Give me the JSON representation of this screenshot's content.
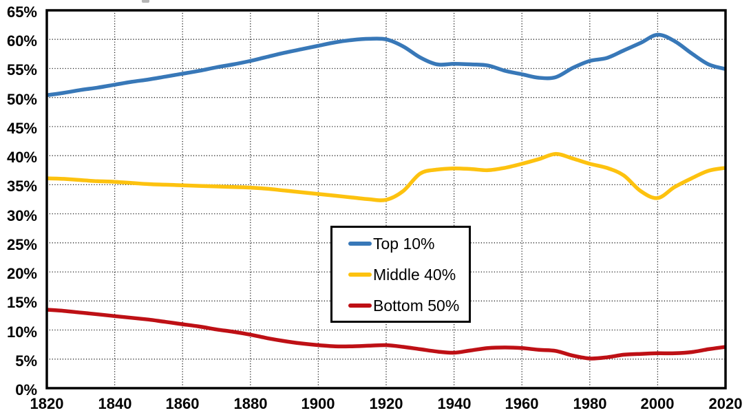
{
  "chart_data": {
    "type": "line",
    "title": "",
    "xlabel": "",
    "ylabel": "",
    "xlim": [
      1820,
      2020
    ],
    "ylim": [
      0,
      65
    ],
    "x_tick_step": 20,
    "y_tick_step": 5,
    "grid": "dotted",
    "legend_position": "center",
    "x_tick_labels": [
      "1820",
      "1840",
      "1860",
      "1880",
      "1900",
      "1920",
      "1940",
      "1960",
      "1980",
      "2000",
      "2020"
    ],
    "y_tick_labels": [
      "0%",
      "5%",
      "10%",
      "15%",
      "20%",
      "25%",
      "30%",
      "35%",
      "40%",
      "45%",
      "50%",
      "55%",
      "60%",
      "65%"
    ],
    "x": [
      1820,
      1825,
      1830,
      1835,
      1840,
      1845,
      1850,
      1855,
      1860,
      1865,
      1870,
      1875,
      1880,
      1885,
      1890,
      1895,
      1900,
      1905,
      1910,
      1915,
      1920,
      1925,
      1930,
      1935,
      1940,
      1945,
      1950,
      1955,
      1960,
      1965,
      1970,
      1975,
      1980,
      1985,
      1990,
      1995,
      2000,
      2005,
      2010,
      2015,
      2020
    ],
    "series": [
      {
        "name": "Top 10%",
        "color": "#3878B8",
        "values": [
          50.4,
          50.8,
          51.3,
          51.7,
          52.2,
          52.7,
          53.1,
          53.6,
          54.1,
          54.6,
          55.2,
          55.7,
          56.3,
          57.0,
          57.7,
          58.3,
          58.9,
          59.5,
          59.9,
          60.1,
          60.0,
          58.8,
          56.9,
          55.7,
          55.8,
          55.7,
          55.5,
          54.6,
          54.0,
          53.4,
          53.5,
          55.1,
          56.3,
          56.8,
          58.1,
          59.4,
          60.8,
          59.7,
          57.6,
          55.7,
          54.9
        ]
      },
      {
        "name": "Middle 40%",
        "color": "#FDC20F",
        "values": [
          36.1,
          36.0,
          35.8,
          35.6,
          35.5,
          35.3,
          35.1,
          35.0,
          34.9,
          34.8,
          34.7,
          34.6,
          34.5,
          34.3,
          34.0,
          33.7,
          33.4,
          33.1,
          32.8,
          32.5,
          32.4,
          33.9,
          36.9,
          37.6,
          37.8,
          37.7,
          37.5,
          37.9,
          38.6,
          39.4,
          40.3,
          39.5,
          38.6,
          37.9,
          36.6,
          33.9,
          32.7,
          34.6,
          36.1,
          37.4,
          37.9
        ]
      },
      {
        "name": "Bottom 50%",
        "color": "#BE1015",
        "values": [
          13.5,
          13.3,
          13.0,
          12.7,
          12.4,
          12.1,
          11.8,
          11.4,
          11.0,
          10.6,
          10.1,
          9.7,
          9.2,
          8.6,
          8.1,
          7.7,
          7.4,
          7.2,
          7.2,
          7.3,
          7.4,
          7.1,
          6.7,
          6.3,
          6.1,
          6.5,
          6.9,
          7.0,
          6.9,
          6.6,
          6.4,
          5.6,
          5.1,
          5.3,
          5.75,
          5.9,
          6.0,
          6.0,
          6.2,
          6.7,
          7.1
        ]
      }
    ],
    "legend_entries": [
      "Top 10%",
      "Middle 40%",
      "Bottom 50%"
    ]
  },
  "colors": {
    "top10_line": "#3878B8",
    "middle40_line": "#FDC20F",
    "bottom50_line": "#BE1015",
    "axis_and_text": "#000000",
    "gridline": "#1b1b1b",
    "background": "#ffffff",
    "top_edge_artifact": "#b5b5b5"
  }
}
